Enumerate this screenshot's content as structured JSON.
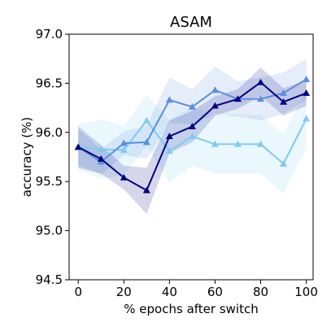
{
  "chart_data": {
    "type": "line",
    "title": "ASAM",
    "xlabel": "% epochs after switch",
    "ylabel": "accuracy (%)",
    "xlim": [
      -4,
      103
    ],
    "ylim": [
      94.5,
      97.0
    ],
    "xticks": [
      0,
      20,
      40,
      60,
      80,
      100
    ],
    "yticks": [
      94.5,
      95.0,
      95.5,
      96.0,
      96.5,
      97.0
    ],
    "xtick_labels": [
      "0",
      "20",
      "40",
      "60",
      "80",
      "100"
    ],
    "ytick_labels": [
      "94.5",
      "95.0",
      "95.5",
      "96.0",
      "96.5",
      "97.0"
    ],
    "grid": false,
    "legend": "none",
    "marker": "triangle-up",
    "x": [
      0,
      10,
      20,
      30,
      40,
      50,
      60,
      70,
      80,
      90,
      100
    ],
    "series": [
      {
        "color": "#000080",
        "values": [
          95.85,
          95.73,
          95.54,
          95.41,
          95.96,
          96.06,
          96.27,
          96.34,
          96.51,
          96.31,
          96.4
        ],
        "band_low": [
          95.64,
          95.58,
          95.42,
          95.17,
          95.79,
          95.9,
          96.17,
          96.24,
          96.37,
          96.17,
          96.27
        ],
        "band_high": [
          96.06,
          95.87,
          95.66,
          95.64,
          96.12,
          96.22,
          96.37,
          96.44,
          96.66,
          96.45,
          96.53
        ]
      },
      {
        "color": "#5b8ede",
        "values": [
          95.85,
          95.7,
          95.89,
          95.9,
          96.33,
          96.26,
          96.43,
          96.34,
          96.34,
          96.4,
          96.54
        ],
        "band_low": [
          95.67,
          95.57,
          95.77,
          95.73,
          96.1,
          96.08,
          96.19,
          96.16,
          96.12,
          96.19,
          96.33
        ],
        "band_high": [
          96.03,
          95.83,
          96.01,
          96.07,
          96.56,
          96.44,
          96.67,
          96.52,
          96.56,
          96.61,
          96.75
        ]
      },
      {
        "color": "#7ecbf0",
        "values": [
          95.85,
          95.83,
          95.82,
          96.12,
          95.81,
          95.96,
          95.88,
          95.88,
          95.88,
          95.68,
          96.14
        ],
        "band_low": [
          95.62,
          95.53,
          95.57,
          95.86,
          95.49,
          95.66,
          95.58,
          95.58,
          95.58,
          95.38,
          95.84
        ],
        "band_high": [
          96.08,
          96.13,
          96.07,
          96.38,
          96.13,
          96.26,
          96.18,
          96.18,
          96.18,
          95.98,
          96.44
        ]
      }
    ]
  }
}
